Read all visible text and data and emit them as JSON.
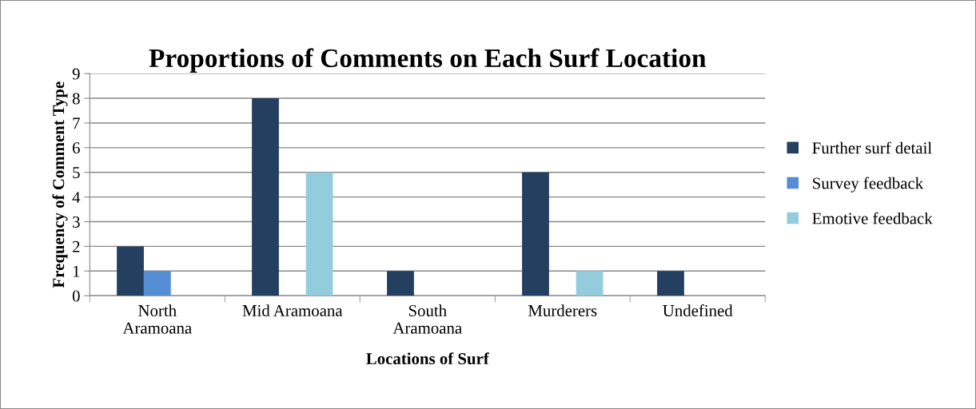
{
  "chart_data": {
    "type": "bar",
    "title": "Proportions of Comments on Each Surf Location",
    "xlabel": "Locations of Surf",
    "ylabel": "Frequency of Comment Type",
    "categories": [
      "North\nAramoana",
      "Mid Aramoana",
      "South\nAramoana",
      "Murderers",
      "Undefined"
    ],
    "series": [
      {
        "name": "Further surf detail",
        "color": "#243f60",
        "values": [
          2,
          8,
          1,
          5,
          1
        ]
      },
      {
        "name": "Survey feedback",
        "color": "#558ed5",
        "values": [
          1,
          0,
          0,
          0,
          0
        ]
      },
      {
        "name": "Emotive feedback",
        "color": "#93cddd",
        "values": [
          0,
          5,
          0,
          1,
          0
        ]
      }
    ],
    "ylim": [
      0,
      9
    ],
    "yticks": [
      0,
      1,
      2,
      3,
      4,
      5,
      6,
      7,
      8,
      9
    ],
    "grid": "y",
    "legend": "right"
  }
}
